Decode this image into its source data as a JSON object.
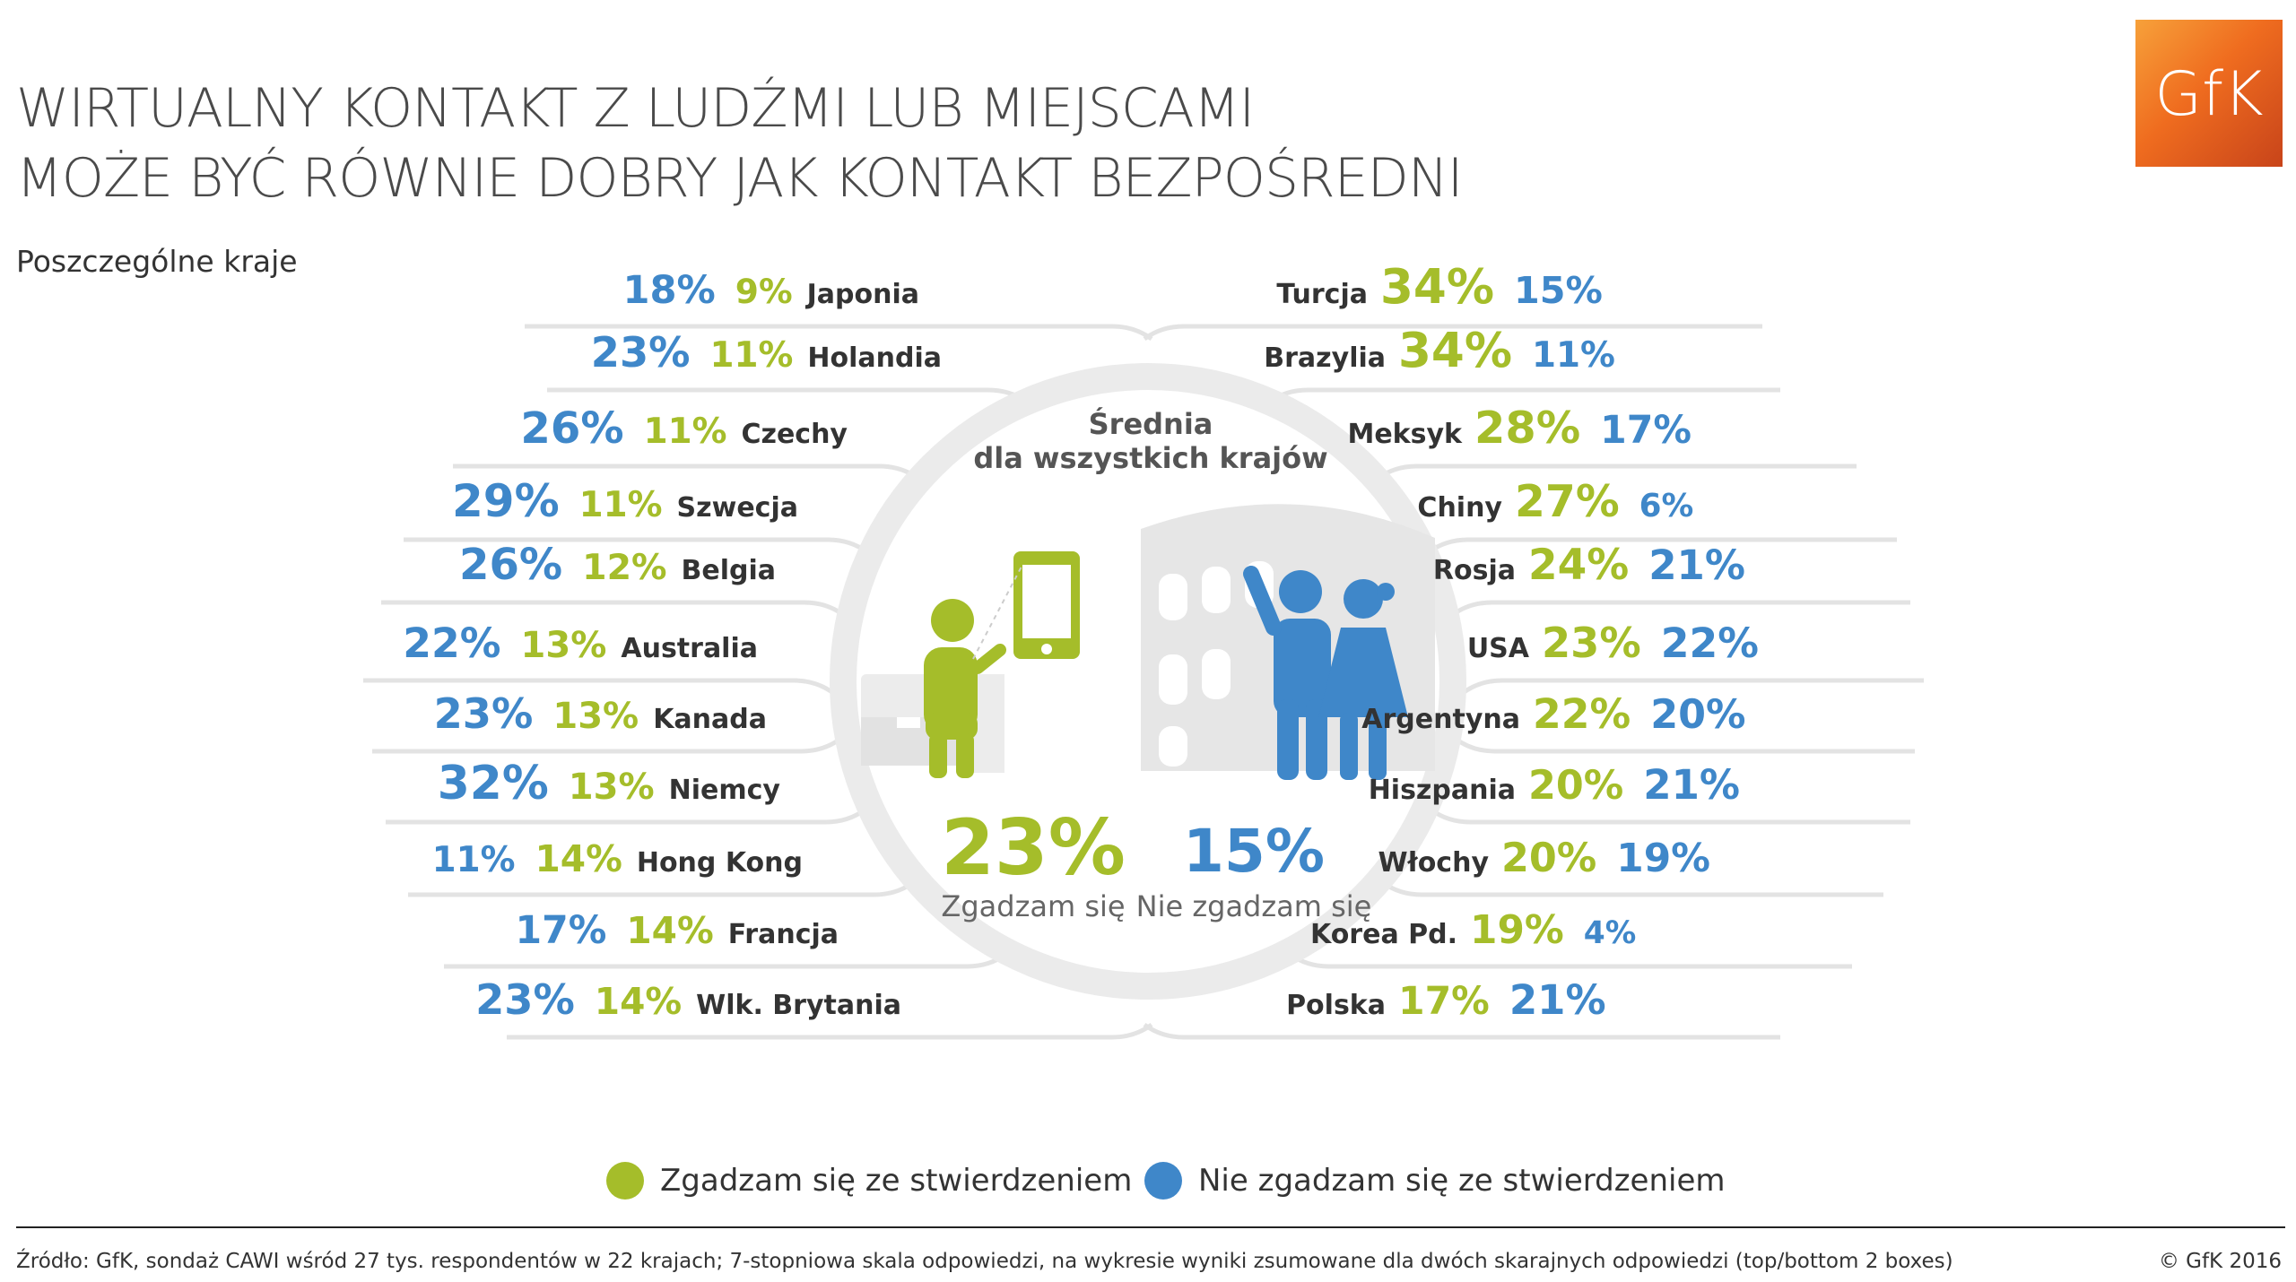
{
  "header": {
    "title_line1": "WIRTUALNY KONTAKT Z LUDŹMI LUB MIEJSCAMI",
    "title_line2": "MOŻE BYĆ RÓWNIE DOBRY JAK KONTAKT BEZPOŚREDNI",
    "subtitle": "Poszczególne kraje",
    "logo_text": "GfK"
  },
  "center": {
    "caption_line1": "Średnia",
    "caption_line2": "dla wszystkich krajów",
    "agree_label": "Zgadzam się",
    "disagree_label": "Nie zgadzam się"
  },
  "legend": {
    "agree": "Zgadzam się ze stwierdzeniem",
    "disagree": "Nie zgadzam się ze stwierdzeniem"
  },
  "footer": {
    "source": "Źródło: GfK, sondaż CAWI wśród 27 tys. respondentów w 22 krajach; 7-stopniowa skala odpowiedzi, na wykresie wyniki zsumowane dla dwóch skarajnych odpowiedzi (top/bottom 2 boxes)",
    "copyright": "© GfK 2016"
  },
  "colors": {
    "agree": "#a5bd2a",
    "disagree": "#3f87c9",
    "text": "#333333",
    "line": "#e3e3e3"
  },
  "chart_data": {
    "type": "table",
    "series": [
      {
        "name": "Zgadzam się ze stwierdzeniem",
        "key": "agree"
      },
      {
        "name": "Nie zgadzam się ze stwierdzeniem",
        "key": "disagree"
      }
    ],
    "average": {
      "agree": 23,
      "disagree": 15
    },
    "left": [
      {
        "country": "Japonia",
        "agree": 9,
        "disagree": 18
      },
      {
        "country": "Holandia",
        "agree": 11,
        "disagree": 23
      },
      {
        "country": "Czechy",
        "agree": 11,
        "disagree": 26
      },
      {
        "country": "Szwecja",
        "agree": 11,
        "disagree": 29
      },
      {
        "country": "Belgia",
        "agree": 12,
        "disagree": 26
      },
      {
        "country": "Australia",
        "agree": 13,
        "disagree": 22
      },
      {
        "country": "Kanada",
        "agree": 13,
        "disagree": 23
      },
      {
        "country": "Niemcy",
        "agree": 13,
        "disagree": 32
      },
      {
        "country": "Hong Kong",
        "agree": 14,
        "disagree": 11
      },
      {
        "country": "Francja",
        "agree": 14,
        "disagree": 17
      },
      {
        "country": "Wlk. Brytania",
        "agree": 14,
        "disagree": 23
      }
    ],
    "right": [
      {
        "country": "Turcja",
        "agree": 34,
        "disagree": 15
      },
      {
        "country": "Brazylia",
        "agree": 34,
        "disagree": 11
      },
      {
        "country": "Meksyk",
        "agree": 28,
        "disagree": 17
      },
      {
        "country": "Chiny",
        "agree": 27,
        "disagree": 6
      },
      {
        "country": "Rosja",
        "agree": 24,
        "disagree": 21
      },
      {
        "country": "USA",
        "agree": 23,
        "disagree": 22
      },
      {
        "country": "Argentyna",
        "agree": 22,
        "disagree": 20
      },
      {
        "country": "Hiszpania",
        "agree": 20,
        "disagree": 21
      },
      {
        "country": "Włochy",
        "agree": 20,
        "disagree": 19
      },
      {
        "country": "Korea Pd.",
        "agree": 19,
        "disagree": 4
      },
      {
        "country": "Polska",
        "agree": 17,
        "disagree": 21
      }
    ]
  }
}
